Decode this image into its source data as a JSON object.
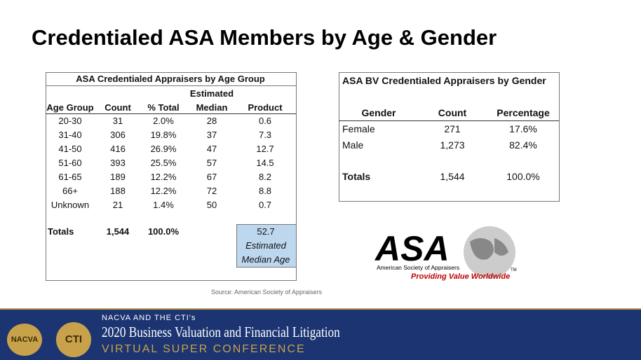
{
  "title": "Credentialed ASA Members by Age & Gender",
  "age_table": {
    "title": "ASA Credentialed Appraisers by Age Group",
    "column_note": "Estimated",
    "columns": [
      "Age Group",
      "Count",
      "% Total",
      "Median",
      "Product"
    ],
    "rows": [
      [
        "20-30",
        "31",
        "2.0%",
        "28",
        "0.6"
      ],
      [
        "31-40",
        "306",
        "19.8%",
        "37",
        "7.3"
      ],
      [
        "41-50",
        "416",
        "26.9%",
        "47",
        "12.7"
      ],
      [
        "51-60",
        "393",
        "25.5%",
        "57",
        "14.5"
      ],
      [
        "61-65",
        "189",
        "12.2%",
        "67",
        "8.2"
      ],
      [
        "66+",
        "188",
        "12.2%",
        "72",
        "8.8"
      ],
      [
        "Unknown",
        "21",
        "1.4%",
        "50",
        "0.7"
      ]
    ],
    "totals": [
      "Totals",
      "1,544",
      "100.0%"
    ],
    "estimate": {
      "value": "52.7",
      "label": [
        "Estimated",
        "Median Age"
      ]
    },
    "source": "Source: American Society of Appraisers"
  },
  "gender_table": {
    "title": "ASA BV Credentialed Appraisers by Gender",
    "columns": [
      "Gender",
      "Count",
      "Percentage"
    ],
    "rows": [
      [
        "Female",
        "271",
        "17.6%"
      ],
      [
        "Male",
        "1,273",
        "82.4%"
      ]
    ],
    "totals": [
      "Totals",
      "1,544",
      "100.0%"
    ]
  },
  "logo": {
    "mark": "ASA",
    "name": "American Society of Appraisers",
    "tm": "TM",
    "tagline": "Providing Value Worldwide"
  },
  "footer": {
    "badges": [
      "NACVA",
      "CTI"
    ],
    "presenter": "NACVA AND THE CTI's",
    "event": "2020 Business Valuation and Financial Litigation",
    "subtitle": "VIRTUAL SUPER CONFERENCE"
  }
}
